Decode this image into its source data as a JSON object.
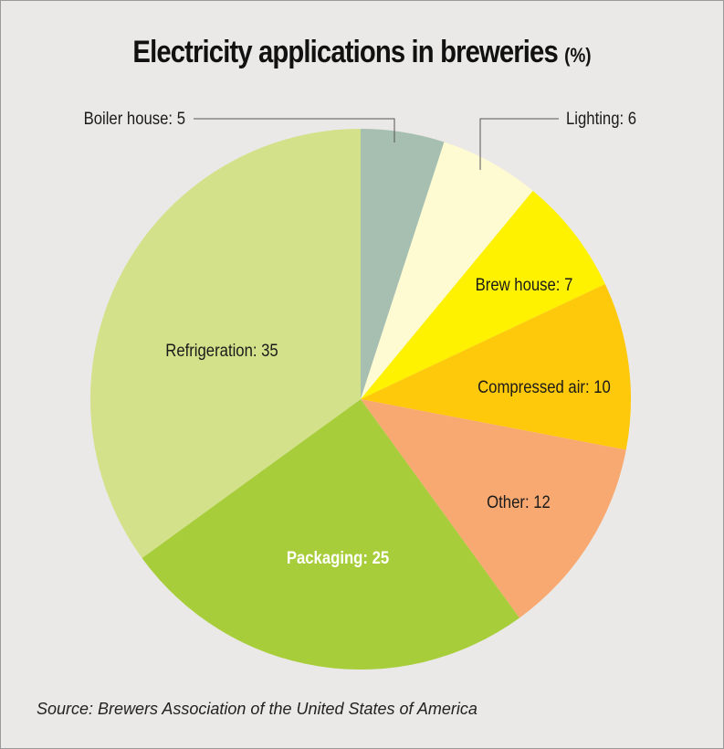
{
  "chart_data": {
    "type": "pie",
    "title": "Electricity applications in breweries",
    "title_unit": "(%)",
    "start_angle_deg": 0,
    "direction": "clockwise",
    "slices": [
      {
        "label": "Boiler house",
        "value": 5,
        "display": "Boiler house: 5",
        "color": "#a7bfb1"
      },
      {
        "label": "Lighting",
        "value": 6,
        "display": "Lighting: 6",
        "color": "#fefbd3"
      },
      {
        "label": "Brew house",
        "value": 7,
        "display": "Brew house: 7",
        "color": "#fef200"
      },
      {
        "label": "Compressed air",
        "value": 10,
        "display": "Compressed air: 10",
        "color": "#ffc90b"
      },
      {
        "label": "Other",
        "value": 12,
        "display": "Other: 12",
        "color": "#f8a971"
      },
      {
        "label": "Packaging",
        "value": 25,
        "display": "Packaging: 25",
        "color": "#a7ce3a"
      },
      {
        "label": "Refrigeration",
        "value": 35,
        "display": "Refrigeration: 35",
        "color": "#d3e18a"
      }
    ],
    "source": "Source: Brewers Association of the United States of America"
  }
}
